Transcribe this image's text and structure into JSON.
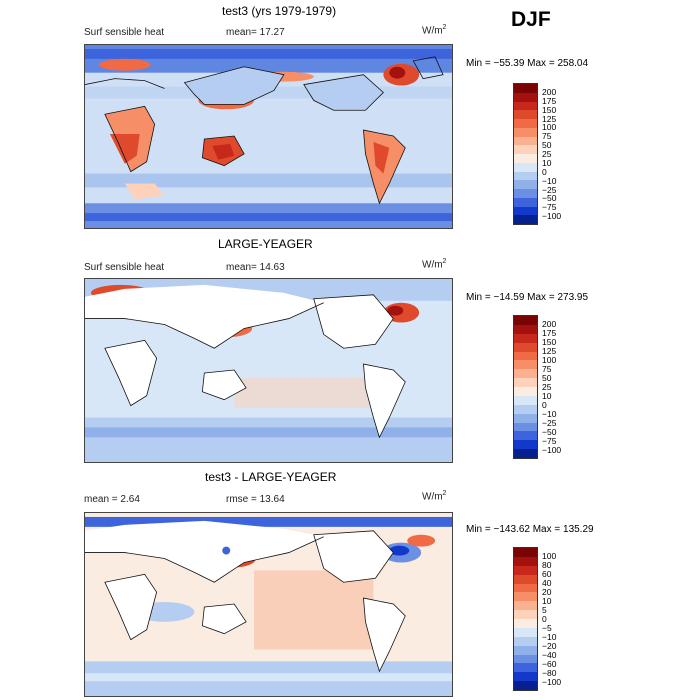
{
  "season": "DJF",
  "panels": [
    {
      "title": "test3 (yrs 1979-1979)",
      "left_text": "Surf sensible heat",
      "mid_text": "mean=  17.27",
      "units": "W/m",
      "units_sup": "2",
      "minmax": "Min = −55.39  Max = 258.04",
      "colorbar_labels": [
        "200",
        "175",
        "150",
        "125",
        "100",
        "75",
        "50",
        "25",
        "10",
        "0",
        "−10",
        "−25",
        "−50",
        "−75",
        "−100"
      ],
      "colors": [
        "#7a0403",
        "#a3120e",
        "#c8271b",
        "#e04a2c",
        "#ef6a45",
        "#f68e67",
        "#fab192",
        "#fdd1ba",
        "#fbece1",
        "#d8e7f7",
        "#b4cdf0",
        "#8fb0e8",
        "#6b8fe2",
        "#3d64dc",
        "#1239c9",
        "#06218f"
      ]
    },
    {
      "title": "LARGE-YEAGER",
      "left_text": "Surf sensible heat",
      "mid_text": "mean=  14.63",
      "units": "W/m",
      "units_sup": "2",
      "minmax": "Min = −14.59  Max = 273.95",
      "colorbar_labels": [
        "200",
        "175",
        "150",
        "125",
        "100",
        "75",
        "50",
        "25",
        "10",
        "0",
        "−10",
        "−25",
        "−50",
        "−75",
        "−100"
      ],
      "colors": [
        "#7a0403",
        "#a3120e",
        "#c8271b",
        "#e04a2c",
        "#ef6a45",
        "#f68e67",
        "#fab192",
        "#fdd1ba",
        "#fbece1",
        "#d8e7f7",
        "#b4cdf0",
        "#8fb0e8",
        "#6b8fe2",
        "#3d64dc",
        "#1239c9",
        "#06218f"
      ]
    },
    {
      "title": "test3 - LARGE-YEAGER",
      "left_text": "mean =    2.64",
      "mid_text": "rmse =   13.64",
      "units": "W/m",
      "units_sup": "2",
      "minmax": "Min = −143.62  Max = 135.29",
      "colorbar_labels": [
        "100",
        "80",
        "60",
        "40",
        "20",
        "10",
        "5",
        "0",
        "−5",
        "−10",
        "−20",
        "−40",
        "−60",
        "−80",
        "−100"
      ],
      "colors": [
        "#7a0403",
        "#a3120e",
        "#c8271b",
        "#e04a2c",
        "#ef6a45",
        "#f68e67",
        "#fab192",
        "#fdd1ba",
        "#fbece1",
        "#d8e7f7",
        "#b4cdf0",
        "#8fb0e8",
        "#6b8fe2",
        "#3d64dc",
        "#1239c9",
        "#06218f"
      ]
    }
  ]
}
